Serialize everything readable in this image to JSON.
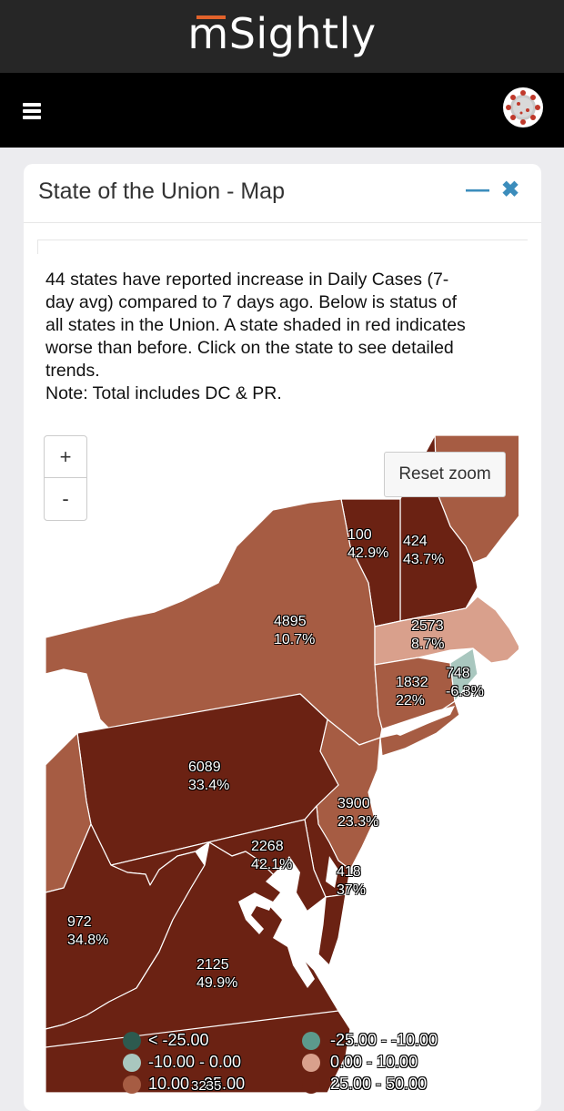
{
  "brand": {
    "name": "mSightly"
  },
  "navbar": {
    "menu_icon": "hamburger-icon",
    "avatar_icon": "coronavirus-icon"
  },
  "card": {
    "title": "State of the Union - Map",
    "minimize_icon": "minus-icon",
    "close_icon": "close-icon",
    "description_lines": [
      "44 states have reported increase in Daily Cases (7-",
      "day avg) compared to 7 days ago. Below is status of",
      "all states in the Union. A state shaded in red indicates",
      "worse than before. Click on the state to see detailed",
      "trends.",
      "Note: Total includes DC & PR."
    ]
  },
  "map": {
    "zoom_in": "+",
    "zoom_out": "-",
    "reset_zoom": "Reset zoom",
    "colors": {
      "very_high": "#6b2213",
      "high": "#a65c43",
      "low": "#d9a08c",
      "dec_small": "#a9c7bf",
      "dec_mid": "#5c9a8c",
      "dec_big": "#2d5a4f"
    },
    "state_labels": [
      {
        "id": "vt",
        "cases": "100",
        "change": "42.9%"
      },
      {
        "id": "nh",
        "cases": "424",
        "change": "43.7%"
      },
      {
        "id": "ny",
        "cases": "4895",
        "change": "10.7%"
      },
      {
        "id": "ma",
        "cases": "2573",
        "change": "8.7%"
      },
      {
        "id": "ct",
        "cases": "1832",
        "change": "22%"
      },
      {
        "id": "ri",
        "cases": "748",
        "change": "-6.3%"
      },
      {
        "id": "pa",
        "cases": "6089",
        "change": "33.4%"
      },
      {
        "id": "nj",
        "cases": "3900",
        "change": "23.3%"
      },
      {
        "id": "md",
        "cases": "2268",
        "change": "42.1%"
      },
      {
        "id": "de",
        "cases": "418",
        "change": "37%"
      },
      {
        "id": "wv",
        "cases": "972",
        "change": "34.8%"
      },
      {
        "id": "va",
        "cases": "2125",
        "change": "49.9%"
      }
    ],
    "legend": [
      {
        "label": "< -25.00",
        "color": "#2d5a4f"
      },
      {
        "label": "-25.00 - -10.00",
        "color": "#5c9a8c"
      },
      {
        "label": "-10.00 - 0.00",
        "color": "#a9c7bf"
      },
      {
        "label": "0.00 - 10.00",
        "color": "#d9a08c"
      },
      {
        "label": "10.00 - 25.00",
        "color": "#a65c43"
      },
      {
        "label": "25.00 - 50.00",
        "color": "#6b2213"
      }
    ],
    "overlap_label": "3235"
  }
}
